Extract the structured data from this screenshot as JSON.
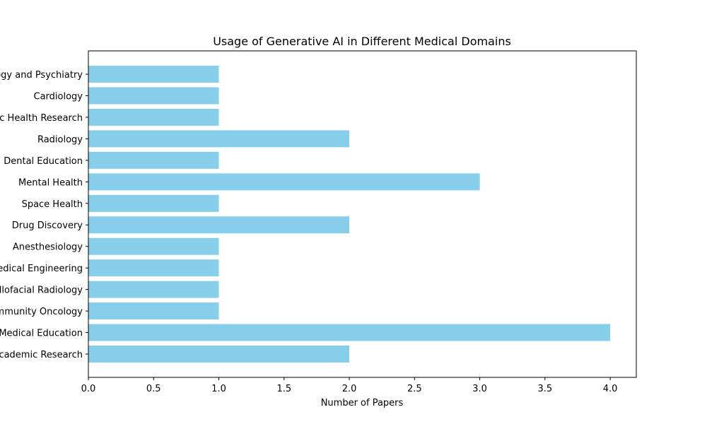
{
  "chart_data": {
    "type": "bar",
    "orientation": "horizontal",
    "title": "Usage of Generative AI in Different Medical Domains",
    "xlabel": "Number of Papers",
    "ylabel": "",
    "xlim": [
      0,
      4.2
    ],
    "xticks": [
      "0.0",
      "0.5",
      "1.0",
      "1.5",
      "2.0",
      "2.5",
      "3.0",
      "3.5",
      "4.0"
    ],
    "categories": [
      "Psychology and Psychiatry",
      "Cardiology",
      "Public Health Research",
      "Radiology",
      "Dental Education",
      "Mental Health",
      "Space Health",
      "Drug Discovery",
      "Anesthesiology",
      "Biomedical Engineering",
      "Dentomaxillofacial Radiology",
      "Community Oncology",
      "Medical Education",
      "Academic Research"
    ],
    "values": [
      1,
      1,
      1,
      2,
      1,
      3,
      1,
      2,
      1,
      1,
      1,
      1,
      4,
      2
    ],
    "bar_color": "#87ceeb",
    "grid": false
  }
}
